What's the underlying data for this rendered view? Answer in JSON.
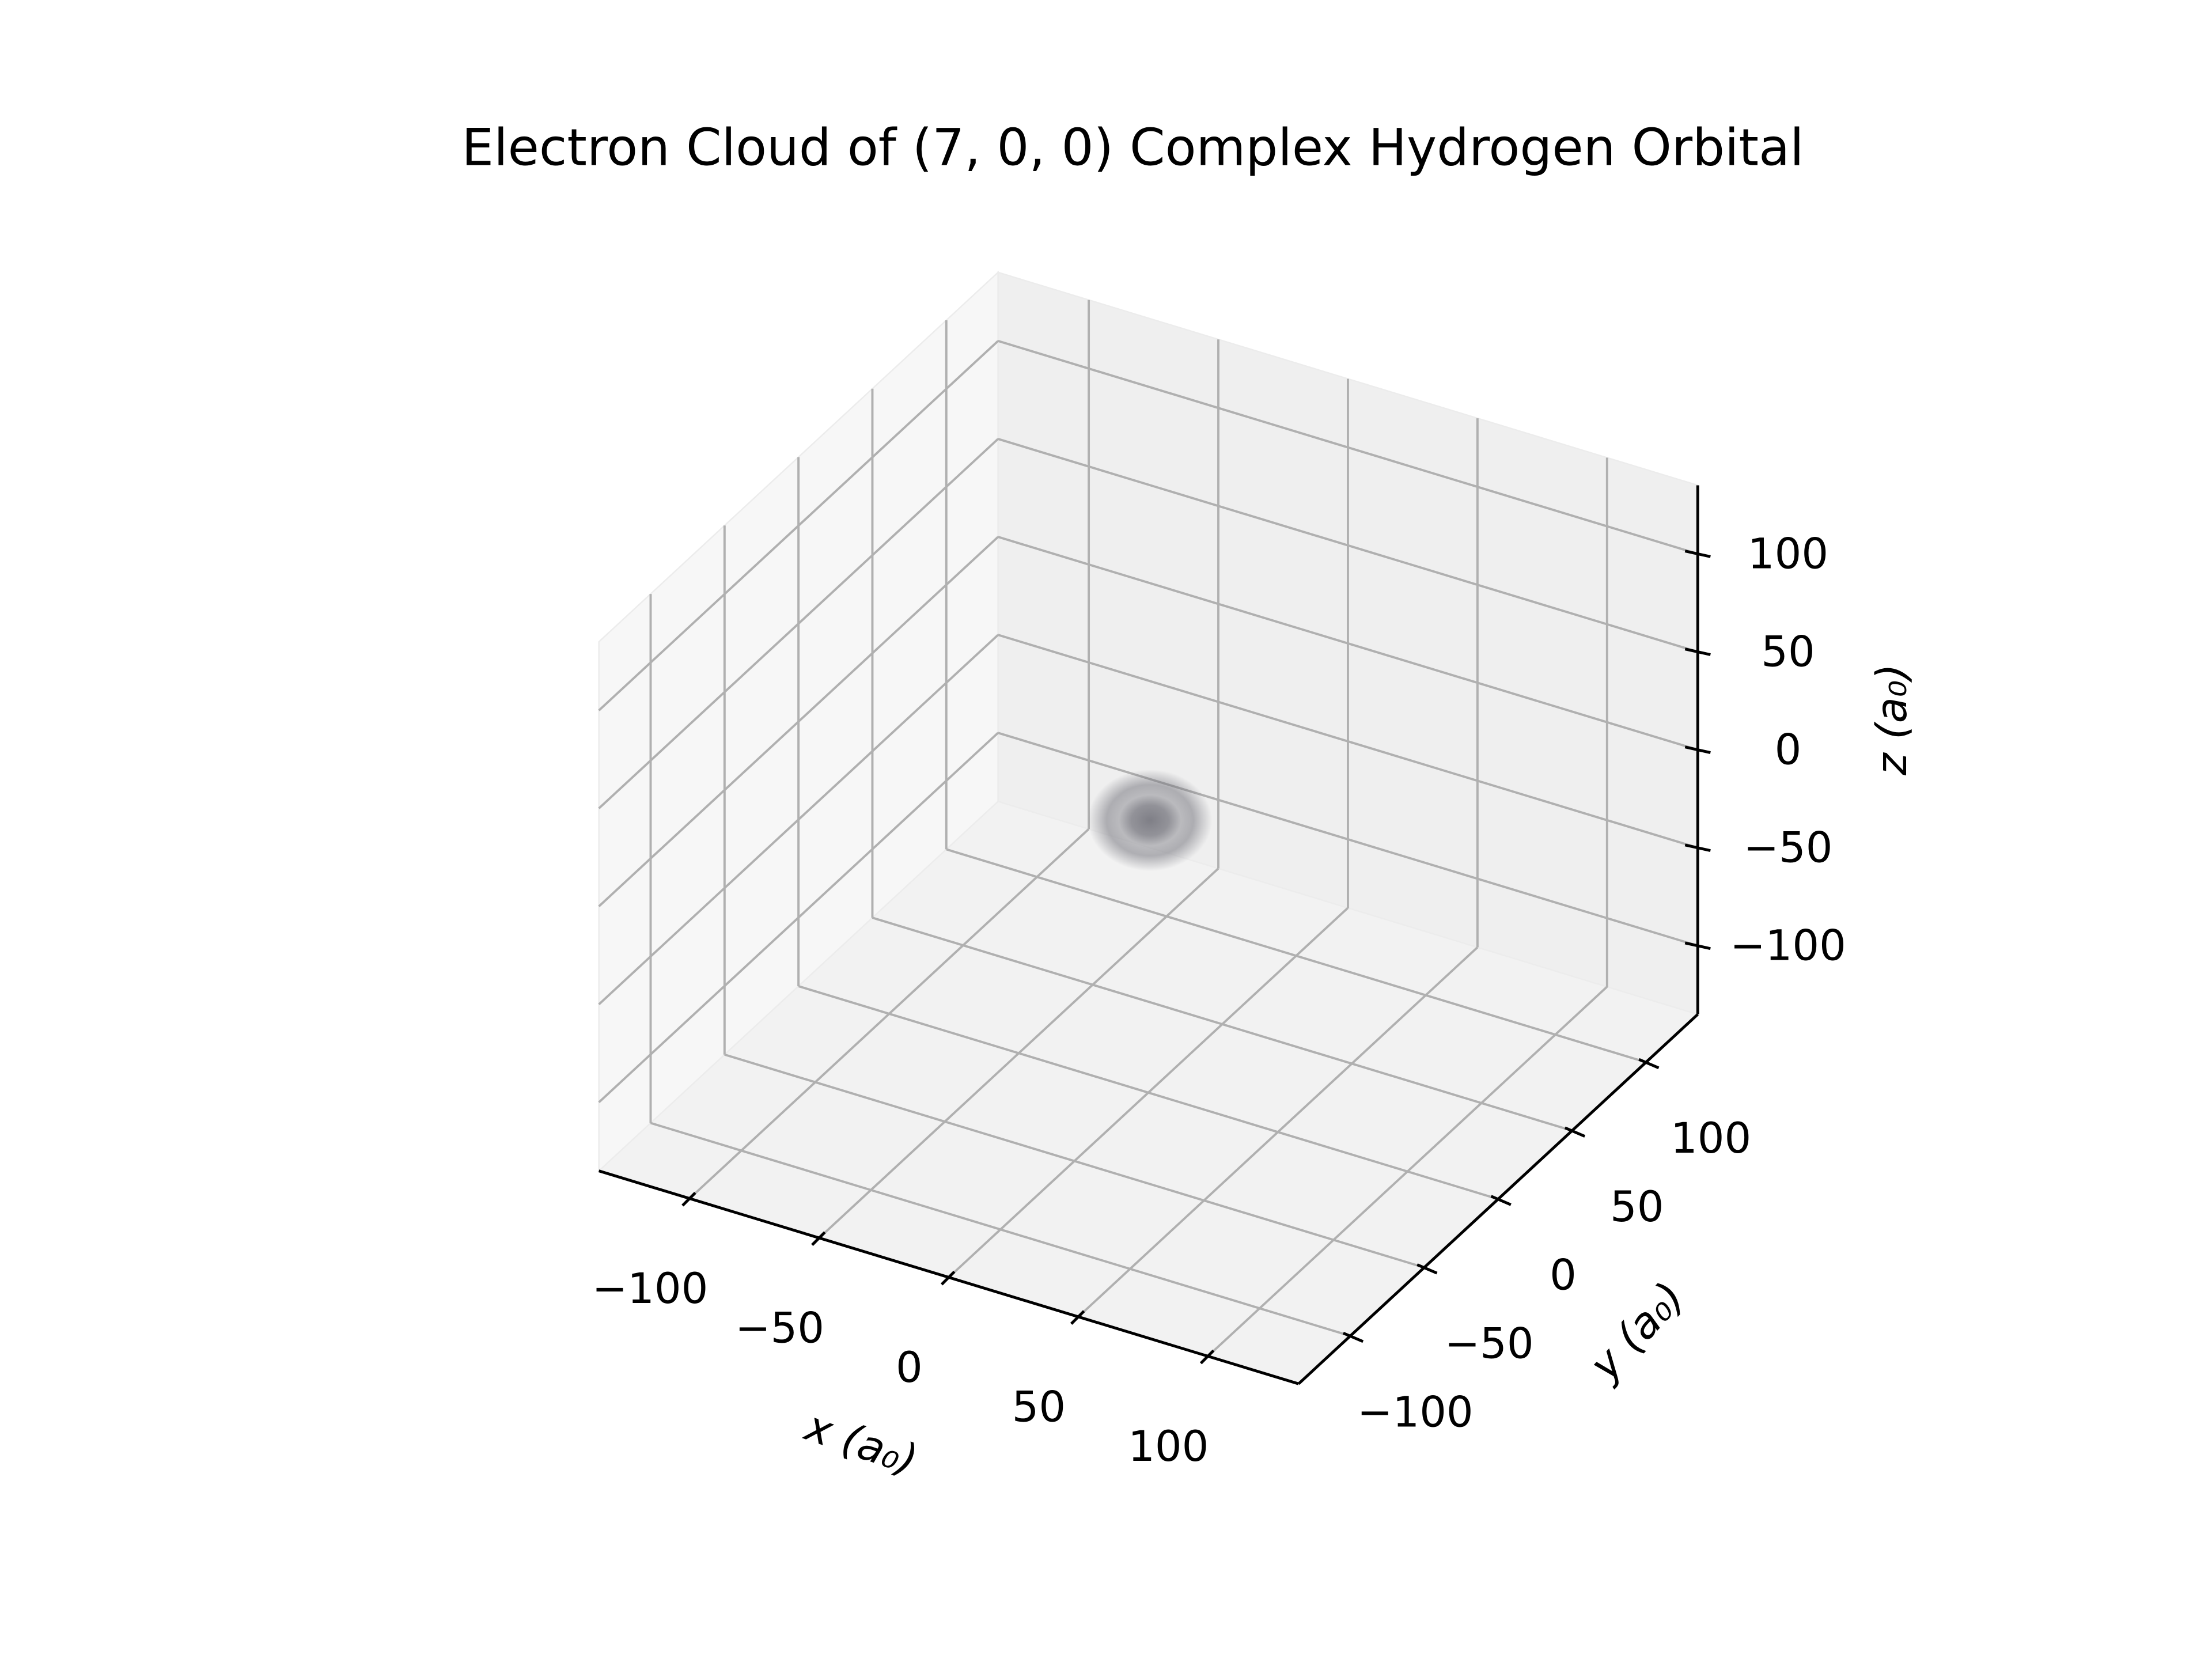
{
  "chart_data": {
    "type": "cloud3d",
    "title": "Electron Cloud of (7, 0, 0) Complex Hydrogen Orbital",
    "x_label": "x (a₀)",
    "y_label": "y (a₀)",
    "z_label": "z (a₀)",
    "xlim": [
      -135,
      135
    ],
    "ylim": [
      -135,
      135
    ],
    "zlim": [
      -135,
      135
    ],
    "xticks": [
      {
        "value": -100,
        "label": "−100"
      },
      {
        "value": -50,
        "label": "−50"
      },
      0,
      50,
      100
    ],
    "yticks": [
      {
        "value": -100,
        "label": "−100"
      },
      {
        "value": -50,
        "label": "−50"
      },
      0,
      50,
      100
    ],
    "zticks": [
      {
        "value": -100,
        "label": "−100"
      },
      {
        "value": -50,
        "label": "−50"
      },
      0,
      50,
      100
    ],
    "grid": true,
    "cloud": {
      "x": -45,
      "y": 80,
      "z": -70,
      "color": "#6b6b74"
    }
  }
}
